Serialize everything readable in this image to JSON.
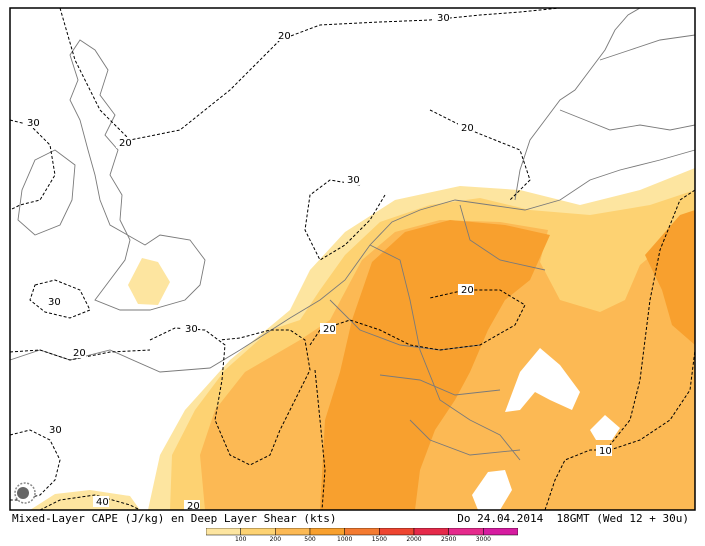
{
  "caption": {
    "left": "Mixed-Layer CAPE (J/kg) en Deep Layer Shear (kts)",
    "right": "Do 24.04.2014  18GMT (Wed 12 + 30u)"
  },
  "contour_labels": [
    "30",
    "20",
    "30",
    "20",
    "20",
    "30",
    "30",
    "20",
    "30",
    "20",
    "20",
    "30",
    "40",
    "20",
    "10"
  ],
  "color_scale": {
    "values": [
      "100",
      "200",
      "500",
      "1000",
      "1500",
      "2000",
      "2500",
      "3000"
    ],
    "colors": [
      "#fde5a0",
      "#fdd272",
      "#fcb954",
      "#f8a02e",
      "#f47a30",
      "#ee4530",
      "#e52a4a",
      "#e52a8c",
      "#d61ca0"
    ]
  },
  "colors": {
    "cape_100": "#fde5a0",
    "cape_200": "#fdd272",
    "cape_500": "#fcb954",
    "cape_1000": "#f8a02e",
    "border": "#7a7a7a"
  }
}
